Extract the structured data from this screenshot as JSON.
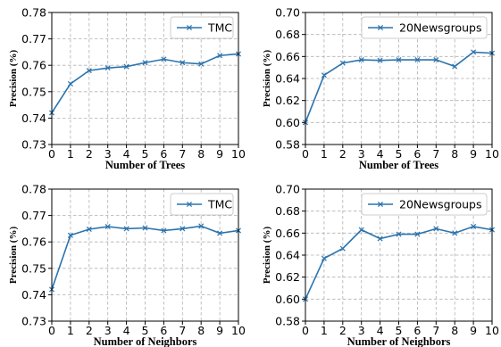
{
  "colors": {
    "series": "#2a73ad",
    "grid": "#b0b0b0"
  },
  "chart_data": [
    {
      "type": "line",
      "xlabel": "Number of Trees",
      "ylabel": "Precision (%)",
      "xlim": [
        0,
        10
      ],
      "ylim": [
        0.73,
        0.78
      ],
      "xticks": [
        0,
        1,
        2,
        3,
        4,
        5,
        6,
        7,
        8,
        9,
        10
      ],
      "yticks": [
        0.73,
        0.74,
        0.75,
        0.76,
        0.77,
        0.78
      ],
      "ydecimals": 2,
      "grid": true,
      "legend_position": "top-right",
      "series": [
        {
          "name": "TMC",
          "marker": "x",
          "x": [
            0,
            1,
            2,
            3,
            4,
            5,
            6,
            7,
            8,
            9,
            10
          ],
          "values": [
            0.742,
            0.753,
            0.758,
            0.759,
            0.7595,
            0.761,
            0.7623,
            0.761,
            0.7605,
            0.7637,
            0.7643
          ]
        }
      ]
    },
    {
      "type": "line",
      "xlabel": "Number of Trees",
      "ylabel": "Precision (%)",
      "xlim": [
        0,
        10
      ],
      "ylim": [
        0.58,
        0.7
      ],
      "xticks": [
        0,
        1,
        2,
        3,
        4,
        5,
        6,
        7,
        8,
        9,
        10
      ],
      "yticks": [
        0.58,
        0.6,
        0.62,
        0.64,
        0.66,
        0.68,
        0.7
      ],
      "ydecimals": 2,
      "grid": true,
      "legend_position": "top-right",
      "series": [
        {
          "name": "20Newsgroups",
          "marker": "x",
          "x": [
            0,
            1,
            2,
            3,
            4,
            5,
            6,
            7,
            8,
            9,
            10
          ],
          "values": [
            0.6,
            0.643,
            0.654,
            0.657,
            0.6565,
            0.657,
            0.657,
            0.657,
            0.651,
            0.664,
            0.663
          ]
        }
      ]
    },
    {
      "type": "line",
      "xlabel": "Number of Neighbors",
      "ylabel": "Precision (%)",
      "xlim": [
        0,
        10
      ],
      "ylim": [
        0.73,
        0.78
      ],
      "xticks": [
        0,
        1,
        2,
        3,
        4,
        5,
        6,
        7,
        8,
        9,
        10
      ],
      "yticks": [
        0.73,
        0.74,
        0.75,
        0.76,
        0.77,
        0.78
      ],
      "ydecimals": 2,
      "grid": true,
      "legend_position": "top-right",
      "series": [
        {
          "name": "TMC",
          "marker": "x",
          "x": [
            0,
            1,
            2,
            3,
            4,
            5,
            6,
            7,
            8,
            9,
            10
          ],
          "values": [
            0.742,
            0.7625,
            0.7648,
            0.7658,
            0.765,
            0.7653,
            0.7643,
            0.765,
            0.766,
            0.7633,
            0.7643
          ]
        }
      ]
    },
    {
      "type": "line",
      "xlabel": "Number of Neighbors",
      "ylabel": "Precision (%)",
      "xlim": [
        0,
        10
      ],
      "ylim": [
        0.58,
        0.7
      ],
      "xticks": [
        0,
        1,
        2,
        3,
        4,
        5,
        6,
        7,
        8,
        9,
        10
      ],
      "yticks": [
        0.58,
        0.6,
        0.62,
        0.64,
        0.66,
        0.68,
        0.7
      ],
      "ydecimals": 2,
      "grid": true,
      "legend_position": "top-right",
      "series": [
        {
          "name": "20Newsgroups",
          "marker": "x",
          "x": [
            0,
            1,
            2,
            3,
            4,
            5,
            6,
            7,
            8,
            9,
            10
          ],
          "values": [
            0.6,
            0.637,
            0.646,
            0.663,
            0.655,
            0.659,
            0.659,
            0.664,
            0.66,
            0.666,
            0.663
          ]
        }
      ]
    }
  ]
}
